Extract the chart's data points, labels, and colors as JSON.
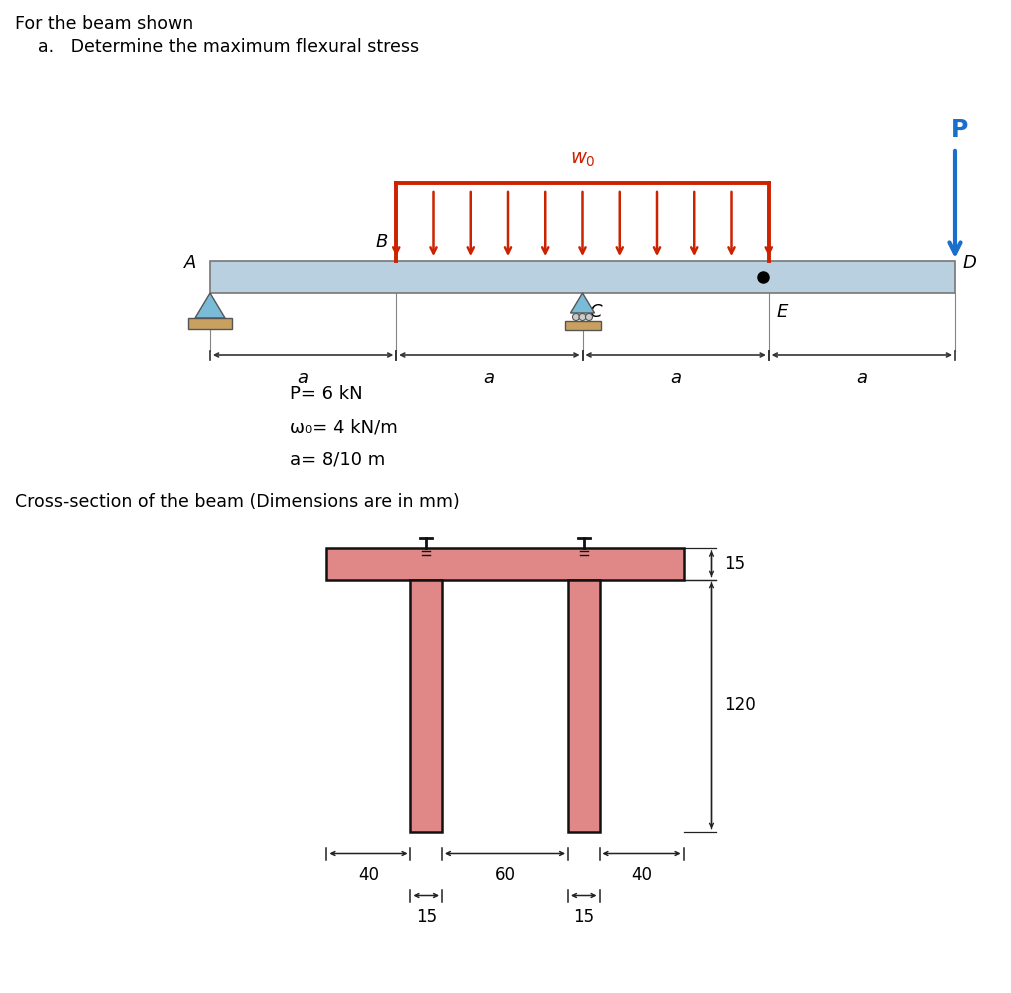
{
  "title_line1": "For the beam shown",
  "title_line2": "a.   Determine the maximum flexural stress",
  "beam_color": "#b8d0df",
  "beam_outline": "#777777",
  "load_color": "#cc2200",
  "P_color": "#1a6fcc",
  "support_pin_color": "#7abcd8",
  "support_roller_color": "#7abcd8",
  "support_base_color": "#c8a060",
  "cross_color": "#e08888",
  "cross_outline": "#111111",
  "dim_color": "#333333",
  "bg_color": "#ffffff",
  "params": [
    "P= 6 kN",
    "ω₀= 4 kN/m",
    "a= 8/10 m"
  ],
  "cross_label": "Cross-section of the beam (Dimensions are in mm)"
}
